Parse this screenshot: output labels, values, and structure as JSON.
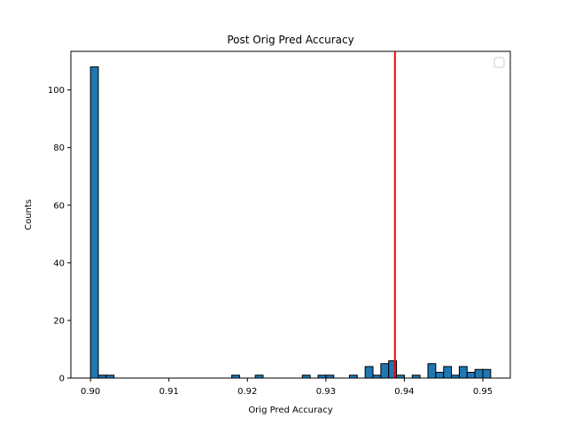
{
  "chart_data": {
    "type": "bar",
    "title": "Post Orig Pred Accuracy",
    "xlabel": "Orig Pred Accuracy",
    "ylabel": "Counts",
    "xlim": [
      0.8975,
      0.9535
    ],
    "ylim": [
      0,
      113.4
    ],
    "x_ticks": [
      0.9,
      0.91,
      0.92,
      0.93,
      0.94,
      0.95
    ],
    "x_tick_labels": [
      "0.90",
      "0.91",
      "0.92",
      "0.93",
      "0.94",
      "0.95"
    ],
    "y_ticks": [
      0,
      20,
      40,
      60,
      80,
      100
    ],
    "y_tick_labels": [
      "0",
      "20",
      "40",
      "60",
      "80",
      "100"
    ],
    "bin_start": 0.9,
    "bin_width": 0.001,
    "values": [
      108,
      1,
      1,
      0,
      0,
      0,
      0,
      0,
      0,
      0,
      0,
      0,
      0,
      0,
      0,
      0,
      0,
      0,
      1,
      0,
      0,
      1,
      0,
      0,
      0,
      0,
      0,
      1,
      0,
      1,
      1,
      0,
      0,
      1,
      0,
      4,
      1,
      5,
      6,
      1,
      0,
      1,
      0,
      5,
      2,
      4,
      1,
      4,
      2,
      3,
      3
    ],
    "bar_color": "#1f77b4",
    "bar_edge_color": "#000000",
    "vline": {
      "x": 0.9388,
      "color": "#ff0000"
    },
    "legend": {
      "placement": "upper right",
      "entries": []
    },
    "grid": false
  }
}
